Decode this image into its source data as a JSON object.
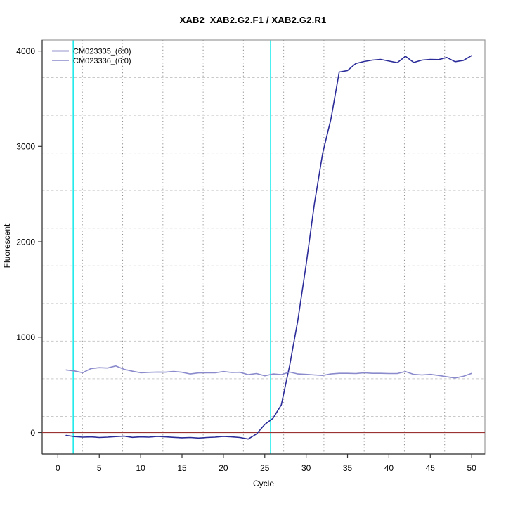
{
  "title": "XAB2  XAB2.G2.F1 / XAB2.G2.R1",
  "chart_data": {
    "type": "line",
    "title": "XAB2  XAB2.G2.F1 / XAB2.G2.R1",
    "xlabel": "Cycle",
    "ylabel": "Fluorescent",
    "xlim": [
      -1.9,
      51.6
    ],
    "ylim": [
      -225,
      4115
    ],
    "xticks": [
      0,
      5,
      10,
      15,
      20,
      25,
      30,
      35,
      40,
      45,
      50
    ],
    "yticks": [
      0,
      1000,
      2000,
      3000,
      4000
    ],
    "grid": {
      "style": "dotted-mesh",
      "divisions": 11,
      "v_color": "#8a8a8a",
      "h_color": "#c9c9c9"
    },
    "legend_position": "top-left",
    "x": [
      1,
      2,
      3,
      4,
      5,
      6,
      7,
      8,
      9,
      10,
      11,
      12,
      13,
      14,
      15,
      16,
      17,
      18,
      19,
      20,
      21,
      22,
      23,
      24,
      25,
      26,
      27,
      28,
      29,
      30,
      31,
      32,
      33,
      34,
      35,
      36,
      37,
      38,
      39,
      40,
      41,
      42,
      43,
      44,
      45,
      46,
      47,
      48,
      49,
      50
    ],
    "series": [
      {
        "name": "CM023335_(6:0)",
        "color": "#2b2b99",
        "values": [
          -30,
          -42,
          -48,
          -45,
          -52,
          -48,
          -42,
          -38,
          -50,
          -45,
          -48,
          -40,
          -45,
          -50,
          -55,
          -52,
          -58,
          -52,
          -48,
          -40,
          -45,
          -52,
          -68,
          -15,
          85,
          150,
          290,
          700,
          1180,
          1760,
          2400,
          2930,
          3290,
          3780,
          3795,
          3870,
          3890,
          3905,
          3912,
          3895,
          3878,
          3945,
          3880,
          3905,
          3912,
          3910,
          3932,
          3888,
          3902,
          3952
        ]
      },
      {
        "name": "CM023336_(6:0)",
        "color": "#8a8acc",
        "values": [
          656,
          646,
          627,
          671,
          680,
          676,
          698,
          663,
          643,
          627,
          631,
          634,
          633,
          641,
          632,
          614,
          625,
          627,
          626,
          639,
          630,
          632,
          607,
          619,
          595,
          614,
          607,
          634,
          614,
          610,
          604,
          599,
          614,
          621,
          621,
          619,
          626,
          621,
          621,
          619,
          619,
          639,
          610,
          604,
          610,
          599,
          585,
          572,
          590,
          620
        ]
      }
    ],
    "markers": {
      "vlines": [
        {
          "x": 1.85,
          "color": "#00e8e8",
          "name": "baseline-start-marker"
        },
        {
          "x": 25.7,
          "color": "#00e8e8",
          "name": "threshold-cycle-marker"
        }
      ],
      "hlines": [
        {
          "y": 0,
          "color": "#9b3333",
          "name": "zero-threshold-line"
        }
      ]
    }
  },
  "colors": {
    "axis": "#333333",
    "border": "#999999",
    "tick_text": "#000000"
  }
}
